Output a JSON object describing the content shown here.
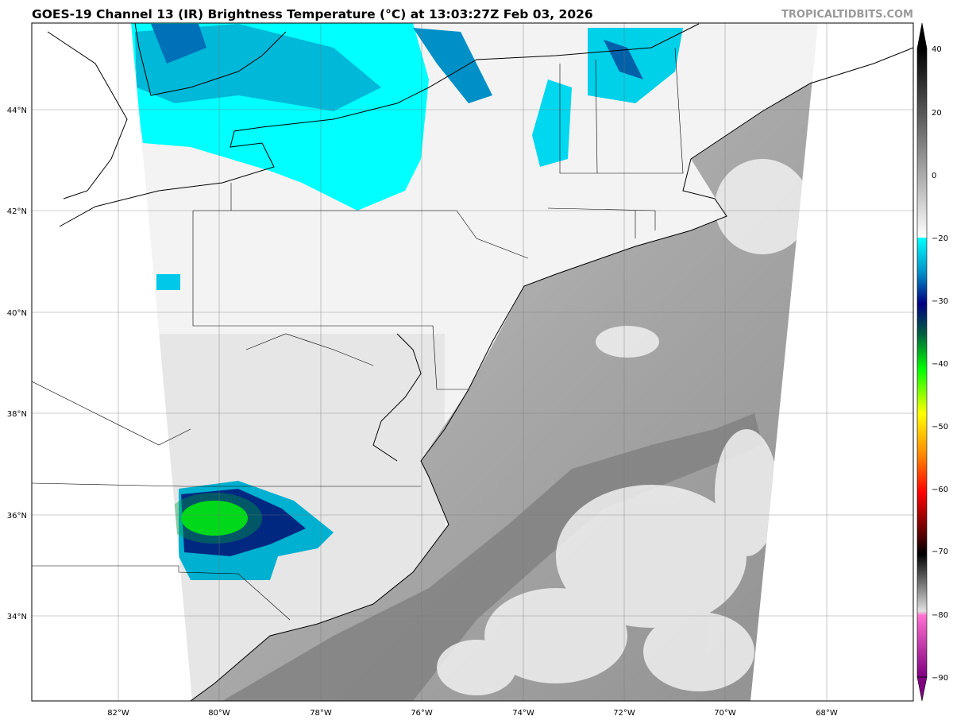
{
  "title": "GOES-19 Channel 13 (IR) Brightness Temperature (°C) at 13:03:27Z Feb 03, 2026",
  "watermark": "TROPICALTIDBITS.COM",
  "map": {
    "latitude_labels": [
      "44°N",
      "42°N",
      "40°N",
      "38°N",
      "36°N",
      "34°N"
    ],
    "longitude_labels": [
      "82°W",
      "80°W",
      "78°W",
      "76°W",
      "74°W",
      "72°W",
      "70°W",
      "68°W"
    ],
    "gridlines": true
  },
  "colorbar": {
    "ticks": [
      "40",
      "20",
      "0",
      "−20",
      "−30",
      "−40",
      "−50",
      "−60",
      "−70",
      "−80",
      "−90"
    ],
    "colors": {
      "warm_top": "#000000",
      "warm_bottom": "#ffffff",
      "cyan": "#00ffff",
      "blue": "#0050b0",
      "navy": "#000070",
      "green": "#00ff00",
      "yellow": "#ffff00",
      "orange": "#ff8000",
      "red": "#ff0000",
      "dark_red": "#600000",
      "black": "#000000",
      "grey": "#c8c8c8",
      "pink": "#ff70d0",
      "purple": "#800080"
    }
  }
}
